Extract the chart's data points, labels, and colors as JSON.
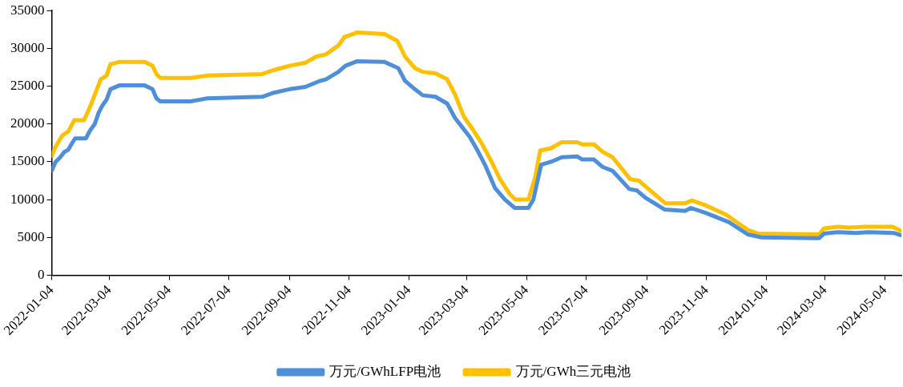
{
  "chart_data": {
    "type": "line",
    "xlim": [
      "2022-01-04",
      "2024-05-21"
    ],
    "ylim": [
      0,
      35000
    ],
    "xticks": [
      "2022-01-04",
      "2022-03-04",
      "2022-05-04",
      "2022-07-04",
      "2022-09-04",
      "2022-11-04",
      "2023-01-04",
      "2023-03-04",
      "2023-05-04",
      "2023-07-04",
      "2023-09-04",
      "2023-11-04",
      "2024-01-04",
      "2024-03-04",
      "2024-05-04"
    ],
    "yticks": [
      0,
      5000,
      10000,
      15000,
      20000,
      25000,
      30000,
      35000
    ],
    "grid": false,
    "legend": "bottom",
    "marker": "none",
    "line_style": "solid",
    "series": [
      {
        "name": "万元/GWhLFP电池",
        "color": "#4f8fda",
        "x": [
          "2022-01-04",
          "2022-01-08",
          "2022-01-12",
          "2022-01-17",
          "2022-01-21",
          "2022-01-25",
          "2022-01-28",
          "2022-02-08",
          "2022-02-12",
          "2022-02-17",
          "2022-02-21",
          "2022-02-25",
          "2022-03-01",
          "2022-03-05",
          "2022-03-14",
          "2022-04-09",
          "2022-04-17",
          "2022-04-21",
          "2022-04-25",
          "2022-05-26",
          "2022-06-12",
          "2022-08-07",
          "2022-08-18",
          "2022-09-04",
          "2022-09-20",
          "2022-10-05",
          "2022-10-11",
          "2022-10-24",
          "2022-10-31",
          "2022-11-12",
          "2022-12-10",
          "2022-12-24",
          "2022-12-31",
          "2023-01-10",
          "2023-01-18",
          "2023-01-31",
          "2023-02-12",
          "2023-02-20",
          "2023-02-26",
          "2023-03-07",
          "2023-03-15",
          "2023-03-23",
          "2023-04-02",
          "2023-04-12",
          "2023-04-22",
          "2023-05-06",
          "2023-05-11",
          "2023-05-19",
          "2023-05-29",
          "2023-06-09",
          "2023-06-25",
          "2023-06-30",
          "2023-07-12",
          "2023-07-21",
          "2023-07-31",
          "2023-08-17",
          "2023-08-25",
          "2023-09-03",
          "2023-09-22",
          "2023-10-13",
          "2023-10-19",
          "2023-11-04",
          "2023-11-27",
          "2023-12-16",
          "2023-12-30",
          "2024-02-27",
          "2024-03-03",
          "2024-03-17",
          "2024-04-05",
          "2024-04-17",
          "2024-05-13",
          "2024-05-20"
        ],
        "values": [
          13800,
          15000,
          15500,
          16300,
          16600,
          17500,
          18100,
          18100,
          19100,
          20000,
          21500,
          22500,
          23200,
          24600,
          25100,
          25100,
          24600,
          23400,
          23000,
          23000,
          23400,
          23600,
          24100,
          24600,
          24900,
          25700,
          25900,
          26900,
          27700,
          28300,
          28200,
          27400,
          25700,
          24600,
          23800,
          23600,
          22700,
          20800,
          19800,
          18300,
          16500,
          14500,
          11500,
          10000,
          8900,
          8900,
          10000,
          14600,
          15000,
          15600,
          15700,
          15300,
          15300,
          14300,
          13800,
          11400,
          11200,
          10200,
          8700,
          8500,
          8900,
          8200,
          7000,
          5400,
          5000,
          4900,
          5500,
          5700,
          5600,
          5700,
          5600,
          5300
        ]
      },
      {
        "name": "万元/GWh三元电池",
        "color": "#ffc000",
        "x": [
          "2022-01-04",
          "2022-01-08",
          "2022-01-15",
          "2022-01-21",
          "2022-01-27",
          "2022-02-06",
          "2022-02-12",
          "2022-02-18",
          "2022-02-23",
          "2022-03-01",
          "2022-03-05",
          "2022-03-14",
          "2022-04-09",
          "2022-04-17",
          "2022-04-21",
          "2022-04-25",
          "2022-05-26",
          "2022-06-12",
          "2022-08-07",
          "2022-08-18",
          "2022-09-04",
          "2022-09-20",
          "2022-10-01",
          "2022-10-11",
          "2022-10-24",
          "2022-10-30",
          "2022-11-12",
          "2022-12-10",
          "2022-12-23",
          "2022-12-31",
          "2023-01-10",
          "2023-01-18",
          "2023-01-31",
          "2023-02-12",
          "2023-02-20",
          "2023-03-01",
          "2023-03-09",
          "2023-03-19",
          "2023-03-29",
          "2023-04-07",
          "2023-04-17",
          "2023-04-23",
          "2023-05-06",
          "2023-05-13",
          "2023-05-18",
          "2023-05-29",
          "2023-06-09",
          "2023-06-25",
          "2023-06-30",
          "2023-07-12",
          "2023-07-21",
          "2023-07-31",
          "2023-08-18",
          "2023-08-27",
          "2023-09-03",
          "2023-09-23",
          "2023-10-13",
          "2023-10-20",
          "2023-11-04",
          "2023-11-24",
          "2023-12-05",
          "2023-12-16",
          "2023-12-27",
          "2024-02-27",
          "2024-03-03",
          "2024-03-17",
          "2024-03-28",
          "2024-04-14",
          "2024-05-12",
          "2024-05-20"
        ],
        "values": [
          15800,
          17000,
          18500,
          19000,
          20500,
          20500,
          22200,
          24200,
          25900,
          26400,
          27900,
          28200,
          28200,
          27700,
          26600,
          26100,
          26100,
          26400,
          26600,
          27100,
          27700,
          28100,
          28900,
          29200,
          30400,
          31500,
          32100,
          31900,
          31000,
          28900,
          27400,
          26900,
          26700,
          25900,
          23900,
          21000,
          19500,
          17500,
          15100,
          12700,
          10700,
          10000,
          10000,
          13000,
          16500,
          16800,
          17600,
          17600,
          17300,
          17300,
          16300,
          15600,
          12700,
          12500,
          11700,
          9500,
          9500,
          9900,
          9200,
          8000,
          7000,
          6000,
          5500,
          5400,
          6200,
          6400,
          6300,
          6400,
          6400,
          5900
        ]
      }
    ]
  }
}
